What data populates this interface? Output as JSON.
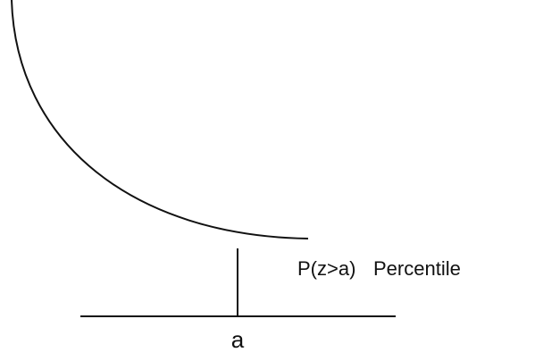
{
  "labels": {
    "probability": "P(z>a)",
    "percentile": "Percentile",
    "point": "a"
  }
}
